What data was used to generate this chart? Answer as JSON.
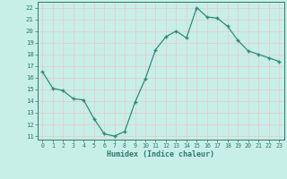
{
  "x": [
    0,
    1,
    2,
    3,
    4,
    5,
    6,
    7,
    8,
    9,
    10,
    11,
    12,
    13,
    14,
    15,
    16,
    17,
    18,
    19,
    20,
    21,
    22,
    23
  ],
  "y": [
    16.5,
    15.1,
    14.9,
    14.2,
    14.1,
    12.5,
    11.2,
    11.0,
    11.4,
    13.9,
    15.9,
    18.4,
    19.5,
    20.0,
    19.4,
    22.0,
    21.2,
    21.1,
    20.4,
    19.2,
    18.3,
    18.0,
    17.7,
    17.4
  ],
  "line_color": "#2e8b7a",
  "marker": "+",
  "xlabel": "Humidex (Indice chaleur)",
  "xlim": [
    -0.5,
    23.5
  ],
  "ylim": [
    10.7,
    22.5
  ],
  "yticks": [
    11,
    12,
    13,
    14,
    15,
    16,
    17,
    18,
    19,
    20,
    21,
    22
  ],
  "xticks": [
    0,
    1,
    2,
    3,
    4,
    5,
    6,
    7,
    8,
    9,
    10,
    11,
    12,
    13,
    14,
    15,
    16,
    17,
    18,
    19,
    20,
    21,
    22,
    23
  ],
  "background_color": "#c8eee8",
  "grid_color": "#e8c8c8",
  "line_color2": "#2e7b6a",
  "tick_color": "#2e7b6a",
  "label_color": "#2e7b6a"
}
